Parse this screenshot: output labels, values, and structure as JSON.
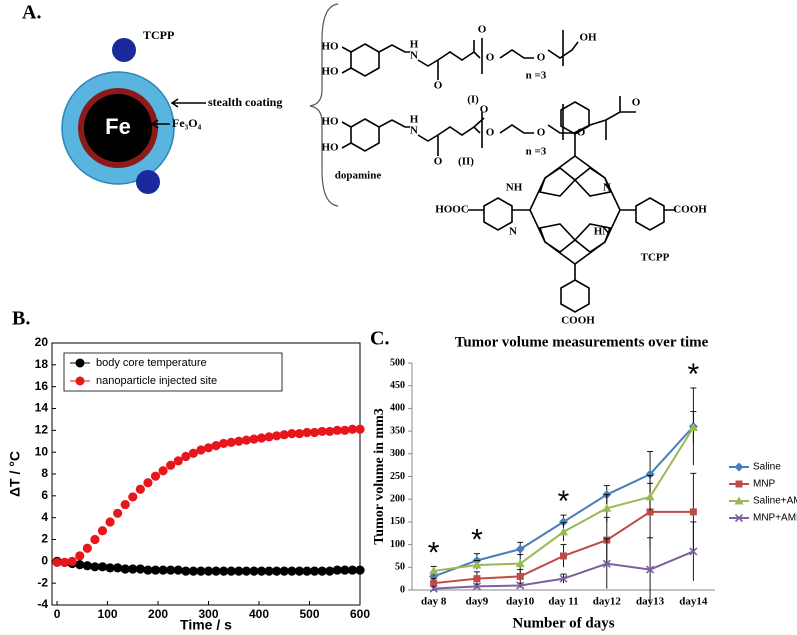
{
  "panel_a": {
    "label": "A.",
    "particle": {
      "core": "Fe",
      "tcpp": "TCPP",
      "coating": "stealth coating",
      "shell": "Fe₃O₄"
    },
    "structures": [
      "HO",
      "HO",
      "H",
      "N",
      "O",
      "O",
      "O",
      "O",
      "OH",
      "n =3",
      "(I)",
      "HO",
      "HO",
      "H",
      "N",
      "O",
      "O",
      "O",
      "O",
      "O",
      "O",
      "n =3",
      "(II)",
      "dopamine",
      "NH",
      "N",
      "N",
      "HN",
      "HOOC",
      "COOH",
      "COOH",
      "TCPP"
    ]
  },
  "chart_data": [
    {
      "type": "scatter",
      "label": "B.",
      "xlabel": "Time / s",
      "ylabel": "ΔT / °C",
      "x": [
        0,
        15,
        30,
        45,
        60,
        75,
        90,
        105,
        120,
        135,
        150,
        165,
        180,
        195,
        210,
        225,
        240,
        255,
        270,
        285,
        300,
        315,
        330,
        345,
        360,
        375,
        390,
        405,
        420,
        435,
        450,
        465,
        480,
        495,
        510,
        525,
        540,
        555,
        570,
        585,
        600
      ],
      "series": [
        {
          "name": "body core temperature",
          "color": "#000000",
          "values": [
            0,
            -0.1,
            -0.2,
            -0.3,
            -0.4,
            -0.5,
            -0.5,
            -0.6,
            -0.6,
            -0.7,
            -0.7,
            -0.7,
            -0.8,
            -0.8,
            -0.8,
            -0.8,
            -0.8,
            -0.9,
            -0.9,
            -0.9,
            -0.9,
            -0.9,
            -0.9,
            -0.9,
            -0.9,
            -0.9,
            -0.9,
            -0.9,
            -0.9,
            -0.9,
            -0.9,
            -0.9,
            -0.9,
            -0.9,
            -0.9,
            -0.9,
            -0.9,
            -0.8,
            -0.8,
            -0.8,
            -0.8
          ]
        },
        {
          "name": "nanoparticle injected site",
          "color": "#e8161b",
          "values": [
            -0.1,
            -0.1,
            0,
            0.5,
            1.2,
            2.0,
            2.8,
            3.6,
            4.4,
            5.2,
            5.9,
            6.6,
            7.2,
            7.8,
            8.3,
            8.8,
            9.2,
            9.6,
            9.9,
            10.2,
            10.4,
            10.6,
            10.8,
            10.9,
            11.0,
            11.1,
            11.2,
            11.3,
            11.4,
            11.5,
            11.6,
            11.7,
            11.7,
            11.8,
            11.8,
            11.9,
            11.9,
            12.0,
            12.0,
            12.1,
            12.1
          ]
        }
      ],
      "xlim": [
        -10,
        600
      ],
      "xticks": [
        0,
        100,
        200,
        300,
        400,
        500,
        600
      ],
      "ylim": [
        -4,
        20
      ],
      "yticks": [
        -4,
        -2,
        0,
        2,
        4,
        6,
        8,
        10,
        12,
        14,
        16,
        18,
        20
      ],
      "legend": "upper left"
    },
    {
      "type": "line",
      "label": "C.",
      "title": "Tumor volume measurements over time",
      "xlabel": "Number of days",
      "ylabel": "Tumor volume in mm3",
      "categories": [
        "day 8",
        "day9",
        "day10",
        "day 11",
        "day12",
        "day13",
        "day14"
      ],
      "series": [
        {
          "name": "Saline",
          "color": "#4a7ebb",
          "marker": "diamond",
          "values": [
            30,
            65,
            90,
            150,
            210,
            255,
            360
          ],
          "errors": [
            10,
            15,
            15,
            15,
            20,
            50,
            85
          ]
        },
        {
          "name": "MNP",
          "color": "#be4b48",
          "marker": "square",
          "values": [
            15,
            25,
            30,
            75,
            110,
            172,
            172
          ],
          "errors": [
            10,
            15,
            15,
            25,
            50,
            80,
            85
          ]
        },
        {
          "name": "Saline+AMF",
          "color": "#98b954",
          "marker": "triangle",
          "values": [
            42,
            55,
            58,
            128,
            180,
            205,
            358
          ],
          "errors": [
            10,
            10,
            20,
            20,
            30,
            30,
            35
          ]
        },
        {
          "name": "MNP+AMF",
          "color": "#7d60a0",
          "marker": "x",
          "values": [
            3,
            8,
            10,
            25,
            58,
            45,
            85
          ],
          "errors": [
            5,
            5,
            5,
            10,
            55,
            70,
            65
          ]
        }
      ],
      "ylim": [
        0,
        500
      ],
      "yticks": [
        0,
        50,
        100,
        150,
        200,
        250,
        300,
        350,
        400,
        450,
        500
      ],
      "annotations": [
        {
          "text": "*",
          "at": "day 8"
        },
        {
          "text": "*",
          "at": "day9"
        },
        {
          "text": "*",
          "at": "day 11"
        },
        {
          "text": "*",
          "at": "day14"
        }
      ],
      "legend": "right"
    }
  ]
}
